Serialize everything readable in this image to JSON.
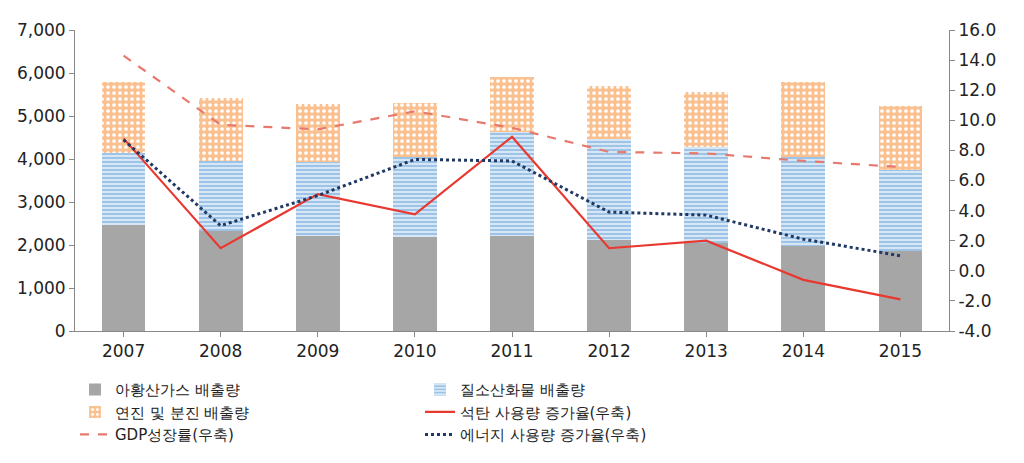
{
  "chart_data": {
    "type": "bar",
    "stacked": true,
    "grid": false,
    "legend": "bottom",
    "categories": [
      "2007",
      "2008",
      "2009",
      "2010",
      "2011",
      "2012",
      "2013",
      "2014",
      "2015"
    ],
    "ylim": [
      0,
      7000
    ],
    "yticks": [
      0,
      {
        "value": 1000,
        "label": "1,000"
      },
      {
        "value": 2000,
        "label": "2,000"
      },
      {
        "value": 3000,
        "label": "3,000"
      },
      {
        "value": 4000,
        "label": "4,000"
      },
      {
        "value": 5000,
        "label": "5,000"
      },
      {
        "value": 6000,
        "label": "6,000"
      },
      {
        "value": 7000,
        "label": "7,000"
      }
    ],
    "y2lim": [
      -4,
      16
    ],
    "y2ticks": [
      {
        "value": -4,
        "label": "-4.0"
      },
      {
        "value": -2,
        "label": "-2.0"
      },
      {
        "value": 0,
        "label": "0.0"
      },
      {
        "value": 2,
        "label": "2.0"
      },
      {
        "value": 4,
        "label": "4.0"
      },
      {
        "value": 6,
        "label": "6.0"
      },
      {
        "value": 8,
        "label": "8.0"
      },
      {
        "value": 10,
        "label": "10.0"
      },
      {
        "value": 12,
        "label": "12.0"
      },
      {
        "value": 14,
        "label": "14.0"
      },
      {
        "value": 16,
        "label": "16.0"
      }
    ],
    "series": [
      {
        "name": "아황산가스 배출량",
        "type": "bar",
        "color": "#a6a6a6",
        "values": [
          2470,
          2320,
          2210,
          2190,
          2220,
          2120,
          2040,
          1970,
          1860
        ]
      },
      {
        "name": "질소산화물 배출량",
        "type": "bar",
        "color": "#9dc3e6",
        "values": [
          1660,
          1630,
          1730,
          1860,
          2400,
          2350,
          2240,
          2080,
          1880
        ]
      },
      {
        "name": "연진 및 분진 배출량",
        "type": "bar",
        "color": "#fbc08f",
        "values": [
          1670,
          1480,
          1340,
          1260,
          1280,
          1230,
          1270,
          1750,
          1490
        ]
      },
      {
        "name": "석탄 사용량 증가율(우축)",
        "type": "line",
        "axis": "y2",
        "color": "#e8382f",
        "line_style": "solid",
        "values": [
          8.8,
          1.5,
          5.1,
          3.75,
          8.9,
          1.5,
          2.0,
          -0.6,
          -1.9
        ]
      },
      {
        "name": "GDP성장률(우축)",
        "type": "line",
        "axis": "y2",
        "color": "#e8796d",
        "line_style": "dashed",
        "values": [
          14.3,
          9.7,
          9.4,
          10.6,
          9.5,
          7.9,
          7.8,
          7.3,
          6.9
        ]
      },
      {
        "name": "에너지 사용량 증가율(우축)",
        "type": "line",
        "axis": "y2",
        "color": "#1f3864",
        "line_style": "dotted",
        "values": [
          8.7,
          3.0,
          5.0,
          7.4,
          7.3,
          3.9,
          3.7,
          2.1,
          1.0
        ]
      }
    ]
  }
}
